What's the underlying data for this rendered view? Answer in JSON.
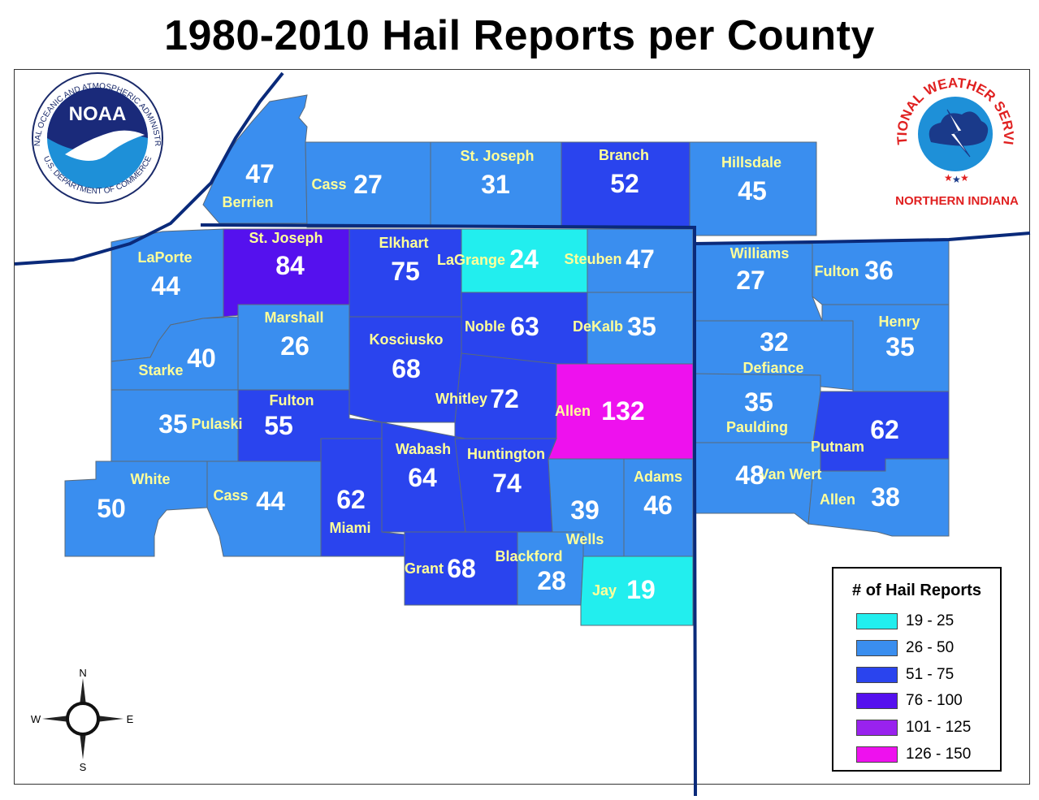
{
  "title": "1980-2010 Hail Reports per County",
  "colors": {
    "c19_25": "#22eeee",
    "c26_50": "#3a8eef",
    "c51_75": "#2a44ee",
    "c76_100": "#5511ee",
    "c101_125": "#9922ee",
    "c126_150": "#ee11ee",
    "name_text": "#ffff99",
    "boundary": "#0a2a7a"
  },
  "noaa": {
    "text": "NOAA",
    "ring": "NATIONAL OCEANIC AND ATMOSPHERIC ADMINISTRATION",
    "bottom": "U.S. DEPARTMENT OF COMMERCE"
  },
  "nws": {
    "ring": "NATIONAL WEATHER SERVICE",
    "office": "NORTHERN INDIANA"
  },
  "compass": {
    "n": "N",
    "s": "S",
    "e": "E",
    "w": "W"
  },
  "legend": {
    "title": "# of Hail Reports",
    "items": [
      {
        "label": "19 - 25",
        "color": "#22eeee"
      },
      {
        "label": "26 - 50",
        "color": "#3a8eef"
      },
      {
        "label": "51 - 75",
        "color": "#2a44ee"
      },
      {
        "label": "76 - 100",
        "color": "#5511ee"
      },
      {
        "label": "101 - 125",
        "color": "#9922ee"
      },
      {
        "label": "126 - 150",
        "color": "#ee11ee"
      }
    ]
  },
  "counties": [
    {
      "name": "Berrien",
      "value": 47
    },
    {
      "name": "Cass",
      "value": 27
    },
    {
      "name": "St. Joseph",
      "value": 31
    },
    {
      "name": "Branch",
      "value": 52
    },
    {
      "name": "Hillsdale",
      "value": 45
    },
    {
      "name": "LaPorte",
      "value": 44
    },
    {
      "name": "St. Joseph",
      "value": 84
    },
    {
      "name": "Elkhart",
      "value": 75
    },
    {
      "name": "LaGrange",
      "value": 24
    },
    {
      "name": "Steuben",
      "value": 47
    },
    {
      "name": "Williams",
      "value": 27
    },
    {
      "name": "Fulton",
      "value": 36
    },
    {
      "name": "Starke",
      "value": 40
    },
    {
      "name": "Marshall",
      "value": 26
    },
    {
      "name": "Kosciusko",
      "value": 68
    },
    {
      "name": "Noble",
      "value": 63
    },
    {
      "name": "DeKalb",
      "value": 35
    },
    {
      "name": "Defiance",
      "value": 32
    },
    {
      "name": "Henry",
      "value": 35
    },
    {
      "name": "Pulaski",
      "value": 35
    },
    {
      "name": "Fulton",
      "value": 55
    },
    {
      "name": "Whitley",
      "value": 72
    },
    {
      "name": "Allen",
      "value": 132
    },
    {
      "name": "Paulding",
      "value": 35
    },
    {
      "name": "Putnam",
      "value": 62
    },
    {
      "name": "White",
      "value": 50
    },
    {
      "name": "Cass",
      "value": 44
    },
    {
      "name": "Miami",
      "value": 62
    },
    {
      "name": "Wabash",
      "value": 64
    },
    {
      "name": "Huntington",
      "value": 74
    },
    {
      "name": "Wells",
      "value": 39
    },
    {
      "name": "Adams",
      "value": 46
    },
    {
      "name": "Van Wert",
      "value": 48
    },
    {
      "name": "Allen",
      "value": 38
    },
    {
      "name": "Grant",
      "value": 68
    },
    {
      "name": "Blackford",
      "value": 28
    },
    {
      "name": "Jay",
      "value": 19
    }
  ]
}
